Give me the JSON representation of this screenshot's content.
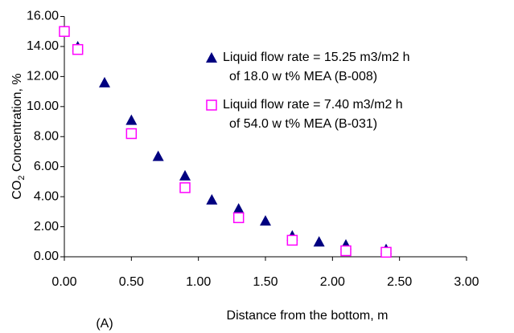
{
  "chart_data": {
    "type": "scatter",
    "ylabel": {
      "main": "CO",
      "sub": "2",
      "rest": " Concentration, %"
    },
    "xlabel": "Distance from the bottom, m",
    "annotation": "(A)",
    "xlim": [
      0,
      3
    ],
    "ylim": [
      0,
      16
    ],
    "xticks": [
      {
        "value": 0,
        "label": "0.00"
      },
      {
        "value": 0.5,
        "label": "0.50"
      },
      {
        "value": 1,
        "label": "1.00"
      },
      {
        "value": 1.5,
        "label": "1.50"
      },
      {
        "value": 2,
        "label": "2.00"
      },
      {
        "value": 2.5,
        "label": "2.50"
      },
      {
        "value": 3,
        "label": "3.00"
      }
    ],
    "yticks": [
      {
        "value": 0,
        "label": "0.00"
      },
      {
        "value": 2,
        "label": "2.00"
      },
      {
        "value": 4,
        "label": "4.00"
      },
      {
        "value": 6,
        "label": "6.00"
      },
      {
        "value": 8,
        "label": "8.00"
      },
      {
        "value": 10,
        "label": "10.00"
      },
      {
        "value": 12,
        "label": "12.00"
      },
      {
        "value": 14,
        "label": "14.00"
      },
      {
        "value": 16,
        "label": "16.00"
      }
    ],
    "grid": false,
    "series": [
      {
        "name": [
          "Liquid flow  rate = 15.25 m3/m2 h",
          "of  18.0 w t% MEA (B-008)"
        ],
        "color": "#000080",
        "marker": "triangle",
        "x": [
          0.1,
          0.3,
          0.5,
          0.7,
          0.9,
          1.1,
          1.3,
          1.5,
          1.7,
          1.9,
          2.1,
          2.4
        ],
        "values": [
          14.0,
          11.6,
          9.1,
          6.7,
          5.4,
          3.8,
          3.2,
          2.4,
          1.4,
          1.0,
          0.8,
          0.5
        ]
      },
      {
        "name": [
          "Liquid flow  rate = 7.40 m3/m2 h",
          "of 54.0 w t% MEA (B-031)"
        ],
        "color": "#ff00ff",
        "marker": "square",
        "x": [
          0,
          0.1,
          0.5,
          0.9,
          1.3,
          1.7,
          2.1,
          2.4
        ],
        "values": [
          15.0,
          13.8,
          8.2,
          4.6,
          2.6,
          1.1,
          0.4,
          0.3
        ]
      }
    ]
  }
}
